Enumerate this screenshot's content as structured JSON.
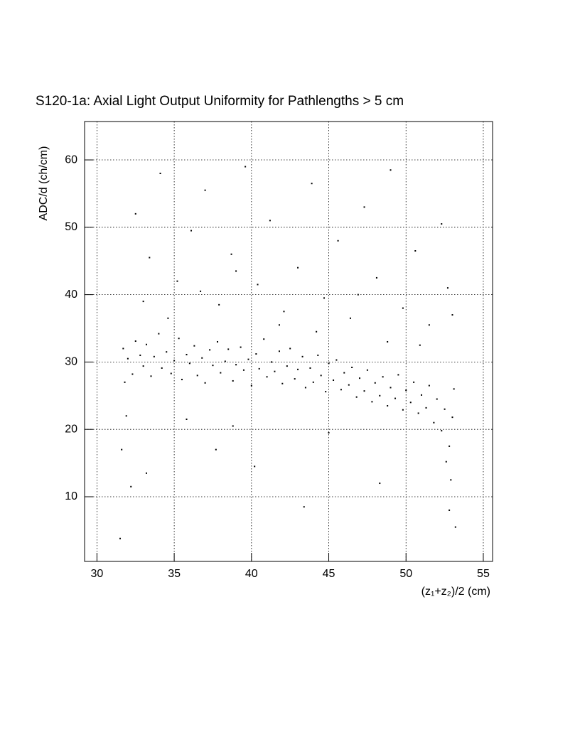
{
  "chart_data": {
    "type": "scatter",
    "title": "S120-1a: Axial Light Output Uniformity for Pathlengths > 5 cm",
    "x_label": "(z₁+z₂)/2 (cm)",
    "y_label": "ADC/d (ch/cm)",
    "xlim": [
      29.2,
      55.6
    ],
    "ylim": [
      0.4,
      65.7
    ],
    "xticks": [
      30,
      35,
      40,
      45,
      50,
      55
    ],
    "yticks": [
      10,
      20,
      30,
      40,
      50,
      60
    ],
    "grid": true,
    "color": "#000000",
    "x": [
      32.0,
      32.3,
      32.5,
      32.8,
      33.0,
      33.2,
      33.5,
      33.7,
      34.0,
      34.2,
      34.5,
      34.8,
      35.0,
      35.3,
      35.5,
      35.8,
      36.0,
      36.3,
      36.5,
      36.8,
      37.0,
      37.3,
      37.5,
      37.8,
      38.0,
      38.3,
      38.5,
      38.8,
      39.0,
      39.3,
      39.5,
      39.8,
      40.0,
      40.3,
      40.5,
      40.8,
      41.0,
      41.3,
      41.5,
      41.8,
      42.0,
      42.3,
      42.5,
      42.8,
      43.0,
      43.3,
      43.5,
      43.8,
      44.0,
      44.3,
      44.5,
      44.8,
      45.0,
      45.3,
      45.5,
      45.8,
      46.0,
      46.3,
      46.5,
      46.8,
      47.0,
      47.3,
      47.5,
      47.8,
      48.0,
      48.3,
      48.5,
      48.8,
      49.0,
      49.3,
      49.5,
      49.8,
      50.0,
      50.3,
      50.5,
      50.8,
      51.0,
      51.3,
      51.5,
      51.8,
      52.0,
      52.3,
      52.5,
      52.8,
      53.0,
      52.6,
      52.9,
      53.1,
      31.7,
      31.8,
      32.5,
      33.4,
      34.1,
      35.2,
      36.1,
      37.0,
      37.9,
      38.7,
      39.6,
      40.4,
      41.2,
      42.1,
      43.0,
      43.9,
      44.7,
      45.6,
      46.4,
      47.3,
      48.1,
      49.0,
      49.8,
      50.6,
      51.5,
      52.3,
      53.0,
      33.0,
      34.6,
      36.7,
      39.0,
      41.8,
      44.2,
      46.9,
      48.8,
      50.9,
      52.7,
      31.6,
      32.2,
      33.2,
      31.9,
      35.8,
      37.7,
      40.2,
      43.4,
      45.0,
      48.3,
      31.5,
      53.2,
      52.8,
      38.8
    ],
    "values": [
      30.5,
      28.2,
      33.1,
      31.0,
      29.4,
      32.6,
      27.9,
      30.8,
      34.2,
      29.1,
      31.5,
      28.3,
      30.2,
      33.5,
      27.4,
      31.1,
      29.8,
      32.4,
      28.0,
      30.6,
      26.9,
      31.8,
      29.5,
      33.0,
      28.4,
      30.1,
      31.9,
      27.2,
      29.6,
      32.2,
      28.8,
      30.4,
      26.5,
      31.2,
      29.0,
      33.4,
      27.8,
      30.0,
      28.6,
      31.6,
      26.8,
      29.4,
      32.0,
      27.5,
      28.9,
      30.8,
      26.2,
      29.1,
      27.0,
      31.0,
      28.0,
      25.6,
      29.8,
      27.3,
      30.3,
      25.9,
      28.4,
      26.6,
      29.2,
      24.8,
      27.6,
      25.7,
      28.8,
      24.1,
      26.9,
      25.0,
      27.8,
      23.5,
      26.2,
      24.6,
      28.1,
      22.9,
      25.8,
      24.0,
      27.0,
      22.4,
      25.1,
      23.2,
      26.5,
      21.0,
      24.5,
      19.8,
      23.0,
      17.5,
      21.8,
      15.2,
      12.5,
      26.0,
      32.0,
      27.0,
      52.0,
      45.5,
      58.0,
      42.0,
      49.5,
      55.5,
      38.5,
      46.0,
      59.0,
      41.5,
      51.0,
      37.5,
      44.0,
      56.5,
      39.5,
      48.0,
      36.5,
      53.0,
      42.5,
      58.5,
      38.0,
      46.5,
      35.5,
      50.5,
      37.0,
      39.0,
      36.5,
      40.5,
      43.5,
      35.5,
      34.5,
      40.0,
      33.0,
      32.5,
      41.0,
      17.0,
      11.5,
      13.5,
      22.0,
      21.5,
      17.0,
      14.5,
      8.5,
      19.5,
      12.0,
      3.8,
      5.5,
      8.0,
      20.5
    ]
  }
}
